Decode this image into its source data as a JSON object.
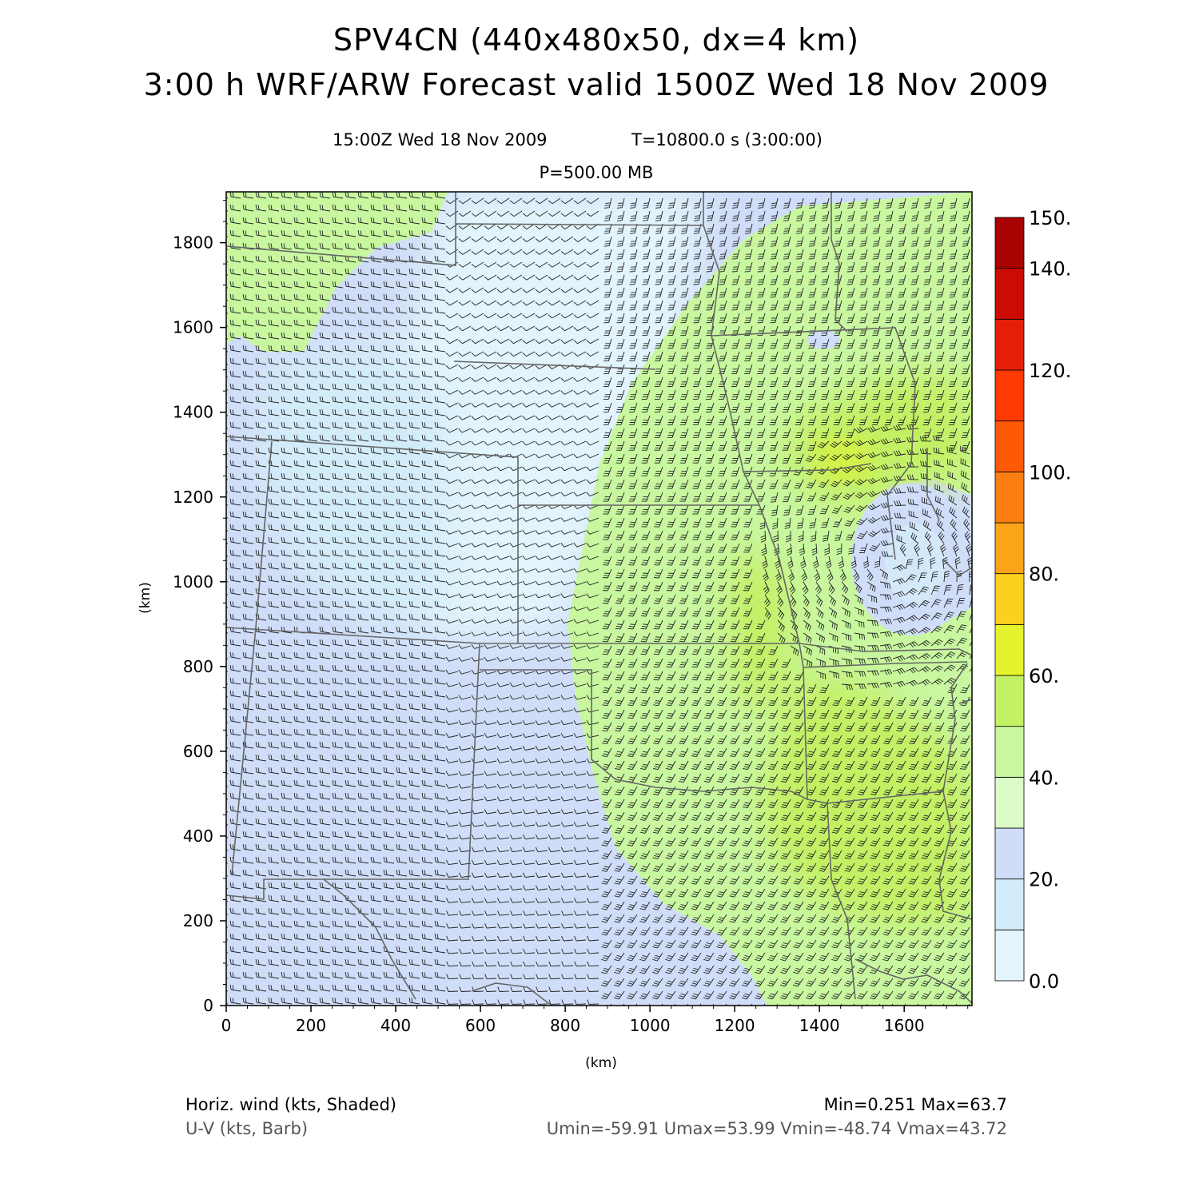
{
  "header": {
    "title_line1": "SPV4CN (440x480x50, dx=4 km)",
    "title_line2": "3:00 h WRF/ARW Forecast valid 1500Z Wed 18 Nov 2009",
    "valid_time": "15:00Z Wed 18 Nov 2009",
    "model_time": "T=10800.0 s (3:00:00)",
    "level": "P=500.00 MB"
  },
  "map": {
    "x_axis_label": "(km)",
    "y_axis_label": "(km)",
    "x_range_km": [
      0,
      1760
    ],
    "y_range_km": [
      0,
      1920
    ],
    "x_ticks": [
      "0",
      "200",
      "400",
      "600",
      "800",
      "1000",
      "1200",
      "1400",
      "1600"
    ],
    "y_ticks": [
      "0",
      "200",
      "400",
      "600",
      "800",
      "1000",
      "1200",
      "1400",
      "1600",
      "1800"
    ],
    "field": "horizontal wind speed (kts) with U-V wind barbs",
    "features": [
      {
        "name": "high-speed band",
        "speed_range_kts": [
          40,
          60
        ],
        "region": "east and southeast"
      },
      {
        "name": "local maximum",
        "speed_range_kts": [
          60,
          64
        ],
        "center_km": [
          1460,
          1290
        ]
      },
      {
        "name": "closed low",
        "speed_range_kts": [
          20,
          30
        ],
        "center_km": [
          1570,
          1050
        ]
      },
      {
        "name": "weak flow",
        "speed_range_kts": [
          0,
          20
        ],
        "region": "north-central"
      }
    ]
  },
  "colorbar": {
    "labels": [
      "0.0",
      "20.",
      "40.",
      "60.",
      "80.",
      "100.",
      "120.",
      "140.",
      "150."
    ],
    "colors": [
      "#e2f4fc",
      "#d3ecfa",
      "#d0ddf8",
      "#dbfcc8",
      "#c8f7a0",
      "#c3f064",
      "#e4f42c",
      "#fdd01f",
      "#fba41a",
      "#fb7e12",
      "#fe5a06",
      "#ff3a03",
      "#e51f07",
      "#cc0c04",
      "#a80202"
    ],
    "bounds": [
      0,
      10,
      20,
      30,
      40,
      50,
      60,
      70,
      80,
      90,
      100,
      110,
      120,
      130,
      140,
      150
    ]
  },
  "footer": {
    "field_name": "Horiz. wind (kts, Shaded)",
    "barb_name": "U-V (kts, Barb)",
    "min_max": "Min=0.251 Max=63.7",
    "uv_range": "Umin=-59.91 Umax=53.99 Vmin=-48.74 Vmax=43.72"
  }
}
